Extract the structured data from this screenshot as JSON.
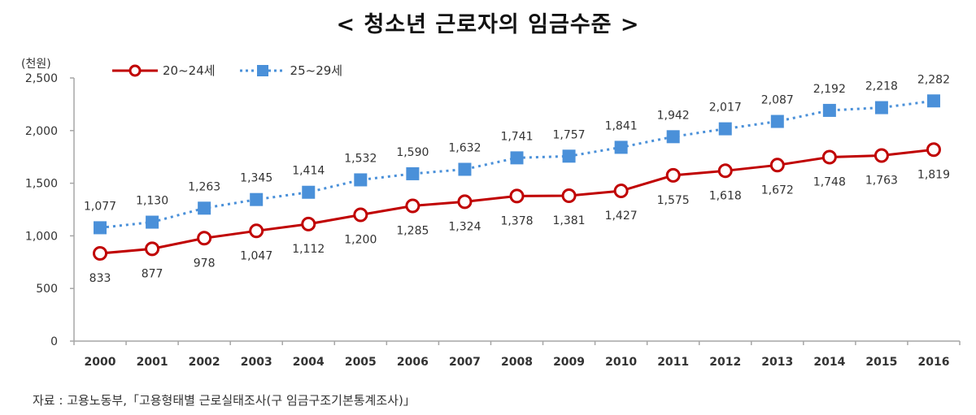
{
  "title": "< 청소년 근로자의 임금수준 >",
  "unit_label": "(천원)",
  "source": "자료 : 고용노동부,「고용형태별 근로실태조사(구 임금구조기본통계조사)」",
  "legend": [
    {
      "label": "20~24세",
      "color": "#c00000",
      "marker": "circle-hollow",
      "line": "solid"
    },
    {
      "label": "25~29세",
      "color": "#4a90d9",
      "marker": "square-filled",
      "line": "dotted"
    }
  ],
  "chart_data": {
    "type": "line",
    "title": "< 청소년 근로자의 임금수준 >",
    "xlabel": "",
    "ylabel": "(천원)",
    "ylim": [
      0,
      2500
    ],
    "yticks": [
      0,
      500,
      1000,
      1500,
      2000,
      2500
    ],
    "ytick_labels": [
      "0",
      "500",
      "1,000",
      "1,500",
      "2,000",
      "2,500"
    ],
    "grid": false,
    "legend_position": "top-left",
    "categories": [
      "2000",
      "2001",
      "2002",
      "2003",
      "2004",
      "2005",
      "2006",
      "2007",
      "2008",
      "2009",
      "2010",
      "2011",
      "2012",
      "2013",
      "2014",
      "2015",
      "2016"
    ],
    "series": [
      {
        "name": "20~24세",
        "color": "#c00000",
        "values": [
          833,
          877,
          978,
          1047,
          1112,
          1200,
          1285,
          1324,
          1378,
          1381,
          1427,
          1575,
          1618,
          1672,
          1748,
          1763,
          1819
        ]
      },
      {
        "name": "25~29세",
        "color": "#4a90d9",
        "values": [
          1077,
          1130,
          1263,
          1345,
          1414,
          1532,
          1590,
          1632,
          1741,
          1757,
          1841,
          1942,
          2017,
          2087,
          2192,
          2218,
          2282
        ]
      }
    ]
  }
}
